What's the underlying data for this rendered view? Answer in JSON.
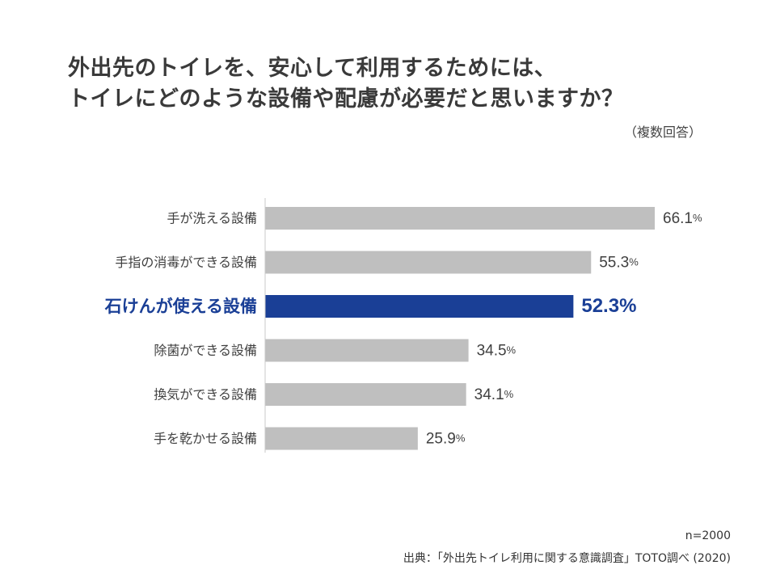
{
  "title_line1": "外出先のトイレを、安心して利用するためには、",
  "title_line2": "トイレにどのような設備や配慮が必要だと思いますか？",
  "subnote": "（複数回答）",
  "sample_size": "n=2000",
  "source": "出典：「外出先トイレ利用に関する意識調査」TOTO調べ (2020)",
  "colors": {
    "bar_default": "#bfbfbf",
    "bar_highlight": "#1a3f96",
    "label_default": "#404040",
    "label_highlight": "#1a3f96"
  },
  "chart_data": {
    "type": "bar",
    "orientation": "horizontal",
    "unit": "%",
    "xlim": [
      0,
      66.1
    ],
    "grid": false,
    "categories": [
      "手が洗える設備",
      "手指の消毒ができる設備",
      "石けんが使える設備",
      "除菌ができる設備",
      "換気ができる設備",
      "手を乾かせる設備"
    ],
    "values": [
      66.1,
      55.3,
      52.3,
      34.5,
      34.1,
      25.9
    ],
    "highlight_index": 2
  }
}
